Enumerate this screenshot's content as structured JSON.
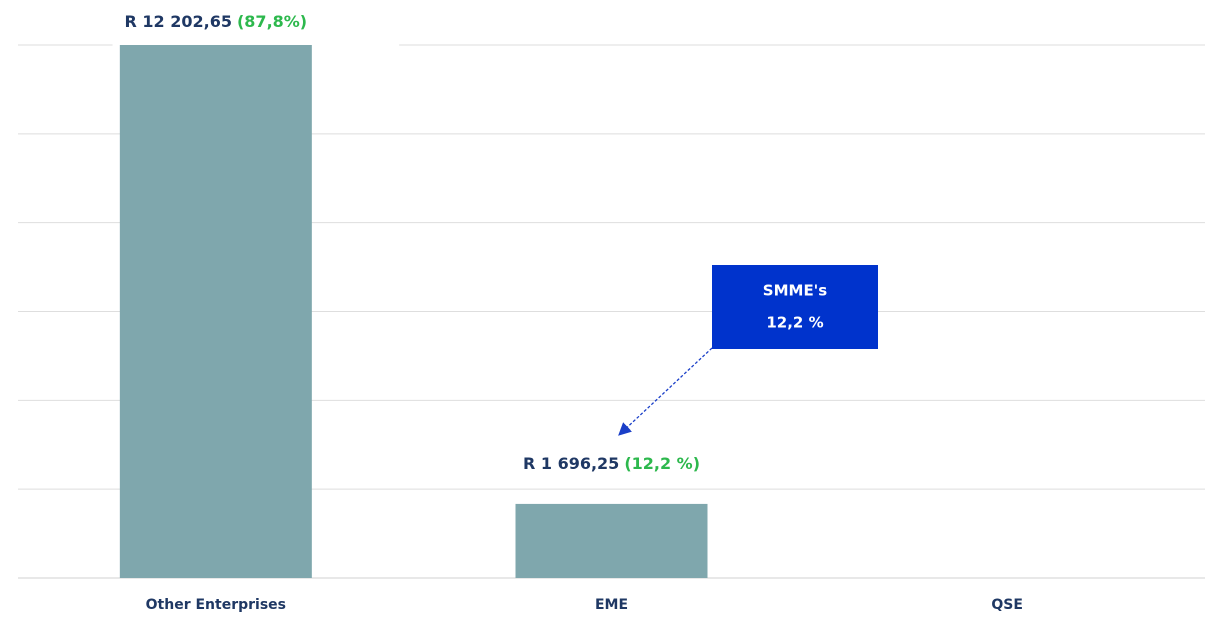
{
  "chart_data": {
    "type": "bar",
    "categories": [
      "Other Enterprises",
      "EME",
      "QSE"
    ],
    "values": [
      12202.65,
      1696.25,
      null
    ],
    "value_labels": [
      "R 12 202,65",
      "R 1 696,25",
      null
    ],
    "shares": [
      87.8,
      12.2,
      null
    ],
    "share_labels": [
      "(87,8%)",
      "(12,2 %)",
      null
    ],
    "color": "#7fa7ad",
    "ylim": [
      0,
      12202.65
    ],
    "grid": true,
    "grid_divisions": 6,
    "annotation": {
      "lines": [
        "SMME's",
        "12,2 %"
      ],
      "color": "#0033cc"
    }
  }
}
